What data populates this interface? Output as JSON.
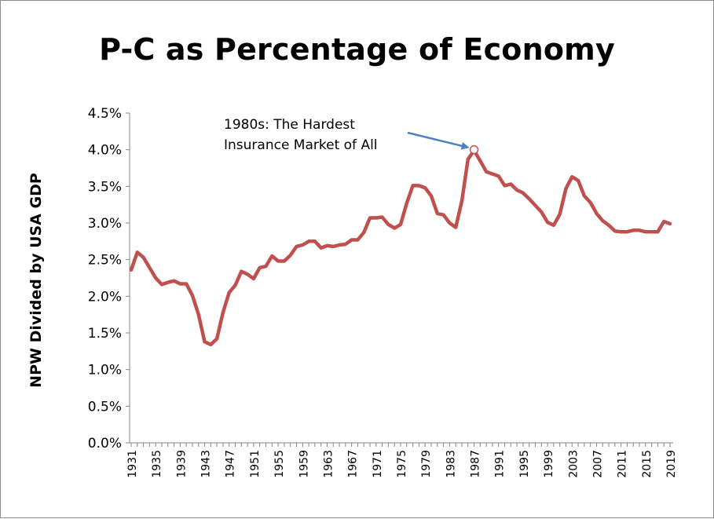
{
  "chart_data": {
    "type": "line",
    "title": "P-C as Percentage of Economy",
    "xlabel": "",
    "ylabel": "NPW Divided by USA GDP",
    "ylim": [
      0,
      0.045
    ],
    "yticks": [
      "0.0%",
      "0.5%",
      "1.0%",
      "1.5%",
      "2.0%",
      "2.5%",
      "3.0%",
      "3.5%",
      "4.0%",
      "4.5%"
    ],
    "xlim": [
      1931,
      2019
    ],
    "xticks": [
      "1931",
      "1935",
      "1939",
      "1943",
      "1947",
      "1951",
      "1955",
      "1959",
      "1963",
      "1967",
      "1971",
      "1975",
      "1979",
      "1983",
      "1987",
      "1991",
      "1995",
      "1999",
      "2003",
      "2007",
      "2011",
      "2015",
      "2019"
    ],
    "grid": false,
    "line_color": "#c0504d",
    "annotation": {
      "text": "1980s: The Hardest\nInsurance Market of All",
      "target_year": 1987,
      "target_value": 0.04,
      "arrow_color": "#4f81bd"
    },
    "series": [
      {
        "x": [
          1931,
          1932,
          1933,
          1934,
          1935,
          1936,
          1937,
          1938,
          1939,
          1940,
          1941,
          1942,
          1943,
          1944,
          1945,
          1946,
          1947,
          1948,
          1949,
          1950,
          1951,
          1952,
          1953,
          1954,
          1955,
          1956,
          1957,
          1958,
          1959,
          1960,
          1961,
          1962,
          1963,
          1964,
          1965,
          1966,
          1967,
          1968,
          1969,
          1970,
          1971,
          1972,
          1973,
          1974,
          1975,
          1976,
          1977,
          1978,
          1979,
          1980,
          1981,
          1982,
          1983,
          1984,
          1985,
          1986,
          1987,
          1988,
          1989,
          1990,
          1991,
          1992,
          1993,
          1994,
          1995,
          1996,
          1997,
          1998,
          1999,
          2000,
          2001,
          2002,
          2003,
          2004,
          2005,
          2006,
          2007,
          2008,
          2009,
          2010,
          2011,
          2012,
          2013,
          2014,
          2015,
          2016,
          2017,
          2018,
          2019
        ],
        "values": [
          0.0236,
          0.026,
          0.0253,
          0.0239,
          0.0225,
          0.0216,
          0.0219,
          0.0221,
          0.0217,
          0.0217,
          0.0201,
          0.0175,
          0.0138,
          0.0134,
          0.0142,
          0.0178,
          0.0205,
          0.0215,
          0.0234,
          0.023,
          0.0224,
          0.0239,
          0.0241,
          0.0255,
          0.0248,
          0.0248,
          0.0256,
          0.0268,
          0.027,
          0.0275,
          0.0275,
          0.0266,
          0.0269,
          0.0268,
          0.027,
          0.0271,
          0.0277,
          0.0277,
          0.0287,
          0.0307,
          0.0307,
          0.0308,
          0.0298,
          0.0293,
          0.0298,
          0.0327,
          0.0351,
          0.0351,
          0.0348,
          0.0337,
          0.0313,
          0.0311,
          0.03,
          0.0294,
          0.033,
          0.0387,
          0.0399,
          0.0385,
          0.037,
          0.0367,
          0.0364,
          0.0351,
          0.0353,
          0.0345,
          0.0341,
          0.0333,
          0.0324,
          0.0315,
          0.0301,
          0.0297,
          0.0312,
          0.0347,
          0.0363,
          0.0358,
          0.0337,
          0.0328,
          0.0313,
          0.0303,
          0.0297,
          0.0289,
          0.0288,
          0.0288,
          0.029,
          0.029,
          0.0288,
          0.0288,
          0.0288,
          0.0302,
          0.0299
        ]
      }
    ]
  }
}
